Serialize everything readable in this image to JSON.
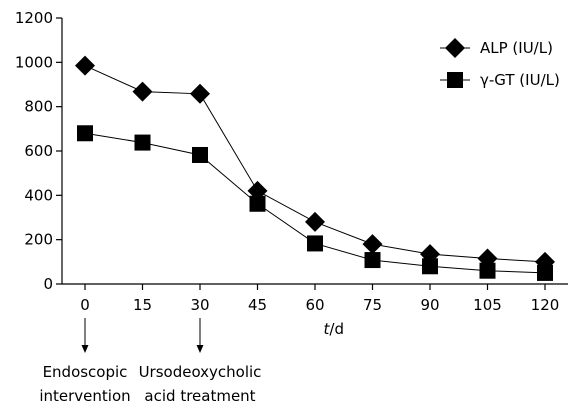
{
  "chart_data": {
    "type": "line",
    "x": [
      0,
      15,
      30,
      45,
      60,
      75,
      90,
      105,
      120
    ],
    "x_tick_labels": [
      "0",
      "15",
      "30",
      "45",
      "60",
      "75",
      "90",
      "105",
      "120"
    ],
    "xlabel": {
      "italic": "t",
      "rest": "/d"
    },
    "ylabel": "",
    "ylim": [
      0,
      1200
    ],
    "y_ticks": [
      0,
      200,
      400,
      600,
      800,
      1000,
      1200
    ],
    "series": [
      {
        "name": "ALP (IU/L)",
        "marker": "diamond",
        "values": [
          985,
          868,
          858,
          420,
          280,
          180,
          135,
          115,
          100
        ]
      },
      {
        "name": "γ-GT (IU/L)",
        "marker": "square",
        "values": [
          680,
          638,
          582,
          362,
          183,
          108,
          80,
          60,
          50
        ]
      }
    ],
    "legend_position": "top-right",
    "annotations": [
      {
        "x": 0,
        "lines": [
          "Endoscopic",
          "intervention"
        ]
      },
      {
        "x": 30,
        "lines": [
          "Ursodeoxycholic",
          "acid treatment"
        ]
      }
    ]
  }
}
